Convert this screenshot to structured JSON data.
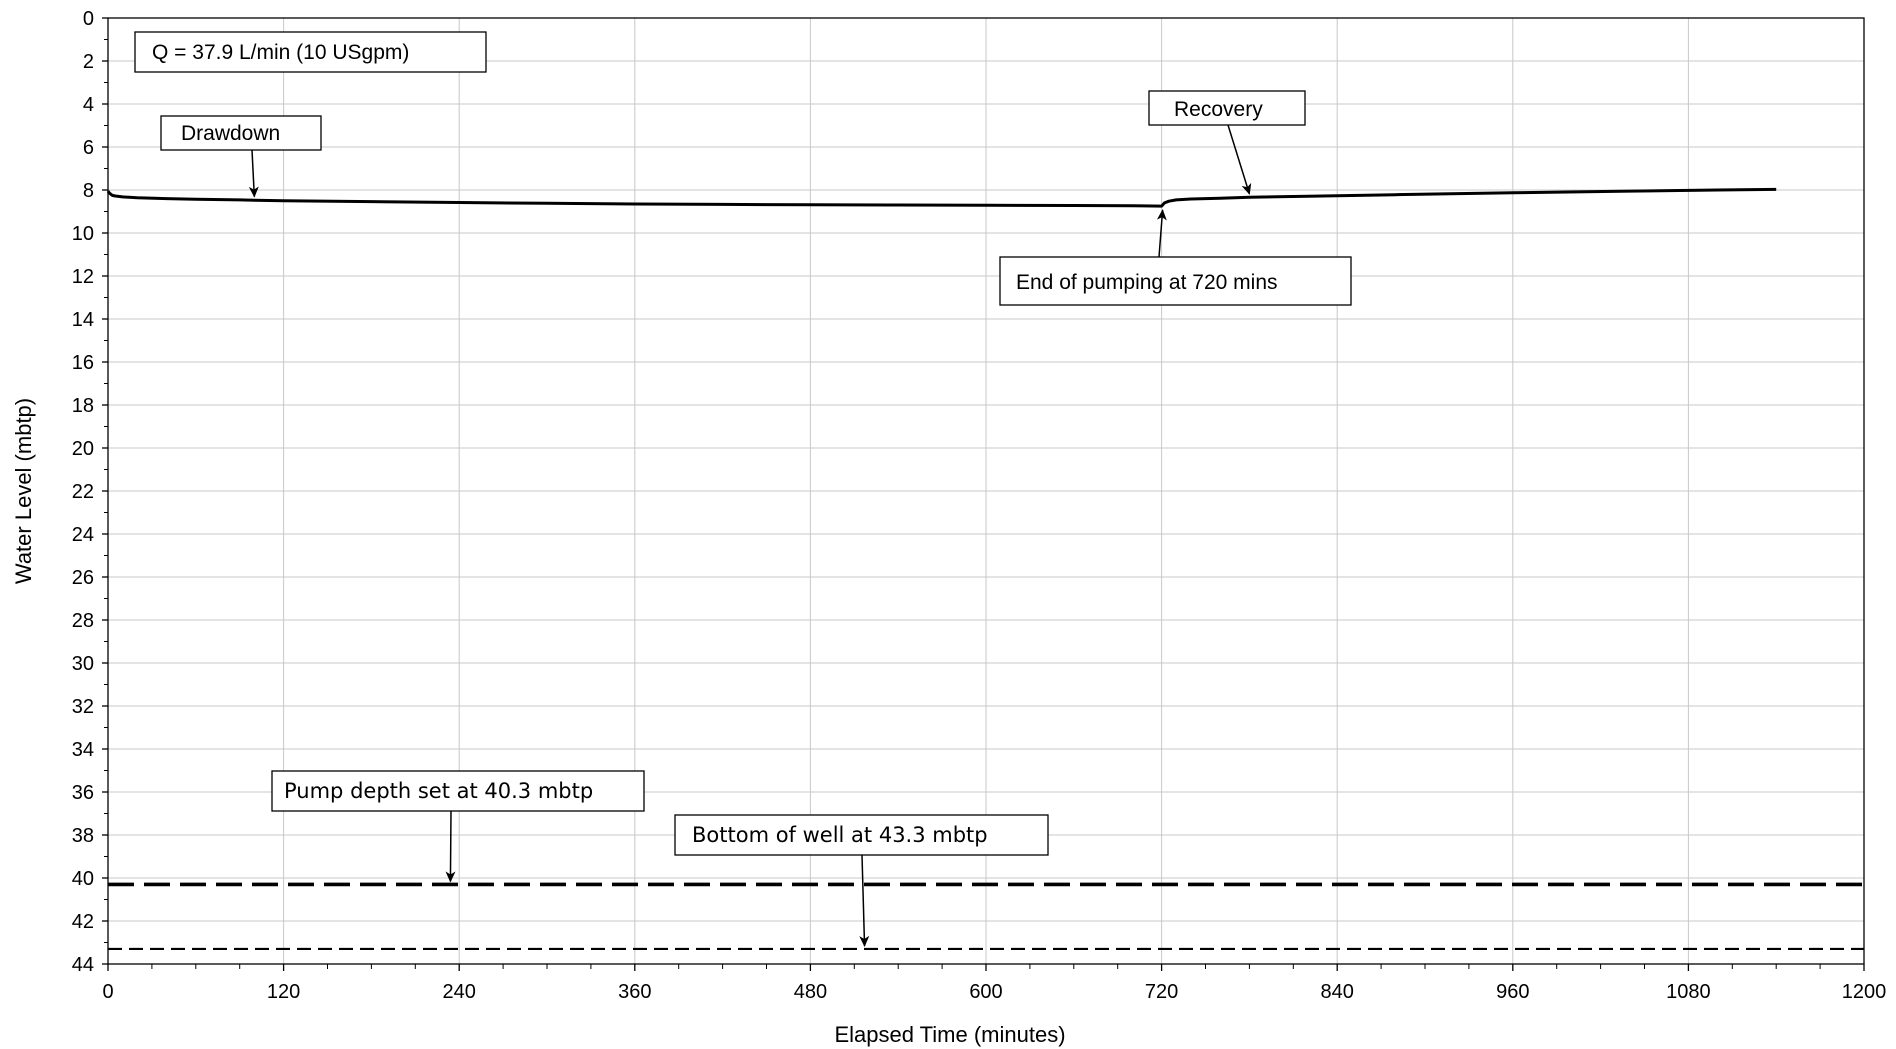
{
  "chart_data": {
    "type": "line",
    "title": "",
    "xlabel": "Elapsed Time (minutes)",
    "ylabel": "Water Level (mbtp)",
    "xlim": [
      0,
      1200
    ],
    "ylim": [
      0,
      44
    ],
    "y_inverted": true,
    "grid": true,
    "x_ticks": [
      0,
      120,
      240,
      360,
      480,
      600,
      720,
      840,
      960,
      1080,
      1200
    ],
    "y_ticks": [
      0,
      2,
      4,
      6,
      8,
      10,
      12,
      14,
      16,
      18,
      20,
      22,
      24,
      26,
      28,
      30,
      32,
      34,
      36,
      38,
      40,
      42,
      44
    ],
    "series": [
      {
        "x": [
          0,
          1,
          3,
          5,
          10,
          20,
          40,
          60,
          90,
          120,
          180,
          240,
          300,
          360,
          420,
          480,
          540,
          600,
          660,
          700,
          720,
          722,
          725,
          730,
          740,
          760,
          780,
          820,
          880,
          960,
          1040,
          1100,
          1140
        ],
        "y": [
          8.05,
          8.15,
          8.25,
          8.28,
          8.32,
          8.36,
          8.4,
          8.43,
          8.46,
          8.5,
          8.54,
          8.58,
          8.62,
          8.65,
          8.67,
          8.69,
          8.7,
          8.71,
          8.72,
          8.73,
          8.75,
          8.6,
          8.52,
          8.46,
          8.42,
          8.38,
          8.34,
          8.29,
          8.22,
          8.13,
          8.05,
          8.0,
          7.97
        ]
      }
    ],
    "reference_lines": [
      {
        "label": "Pump depth set at 40.3 mbtp",
        "y": 40.3,
        "style": "long-dash"
      },
      {
        "label": "Bottom of well at 43.3 mbtp",
        "y": 43.3,
        "style": "short-dash"
      }
    ],
    "annotations": {
      "flow_rate": {
        "text": "Q = 37.9 L/min (10 USgpm)"
      },
      "drawdown": {
        "text": "Drawdown",
        "x": 100,
        "y": 8.45
      },
      "recovery": {
        "text": "Recovery",
        "x": 780,
        "y": 8.32
      },
      "end_pumping": {
        "text": "End of pumping at 720 mins",
        "x": 720,
        "y": 8.75
      },
      "pump_depth": {
        "text": "Pump depth set at 40.3 mbtp",
        "x": 234,
        "y": 40.3
      },
      "bottom_well": {
        "text": "Bottom of well at 43.3 mbtp",
        "x": 517,
        "y": 43.3
      }
    }
  }
}
